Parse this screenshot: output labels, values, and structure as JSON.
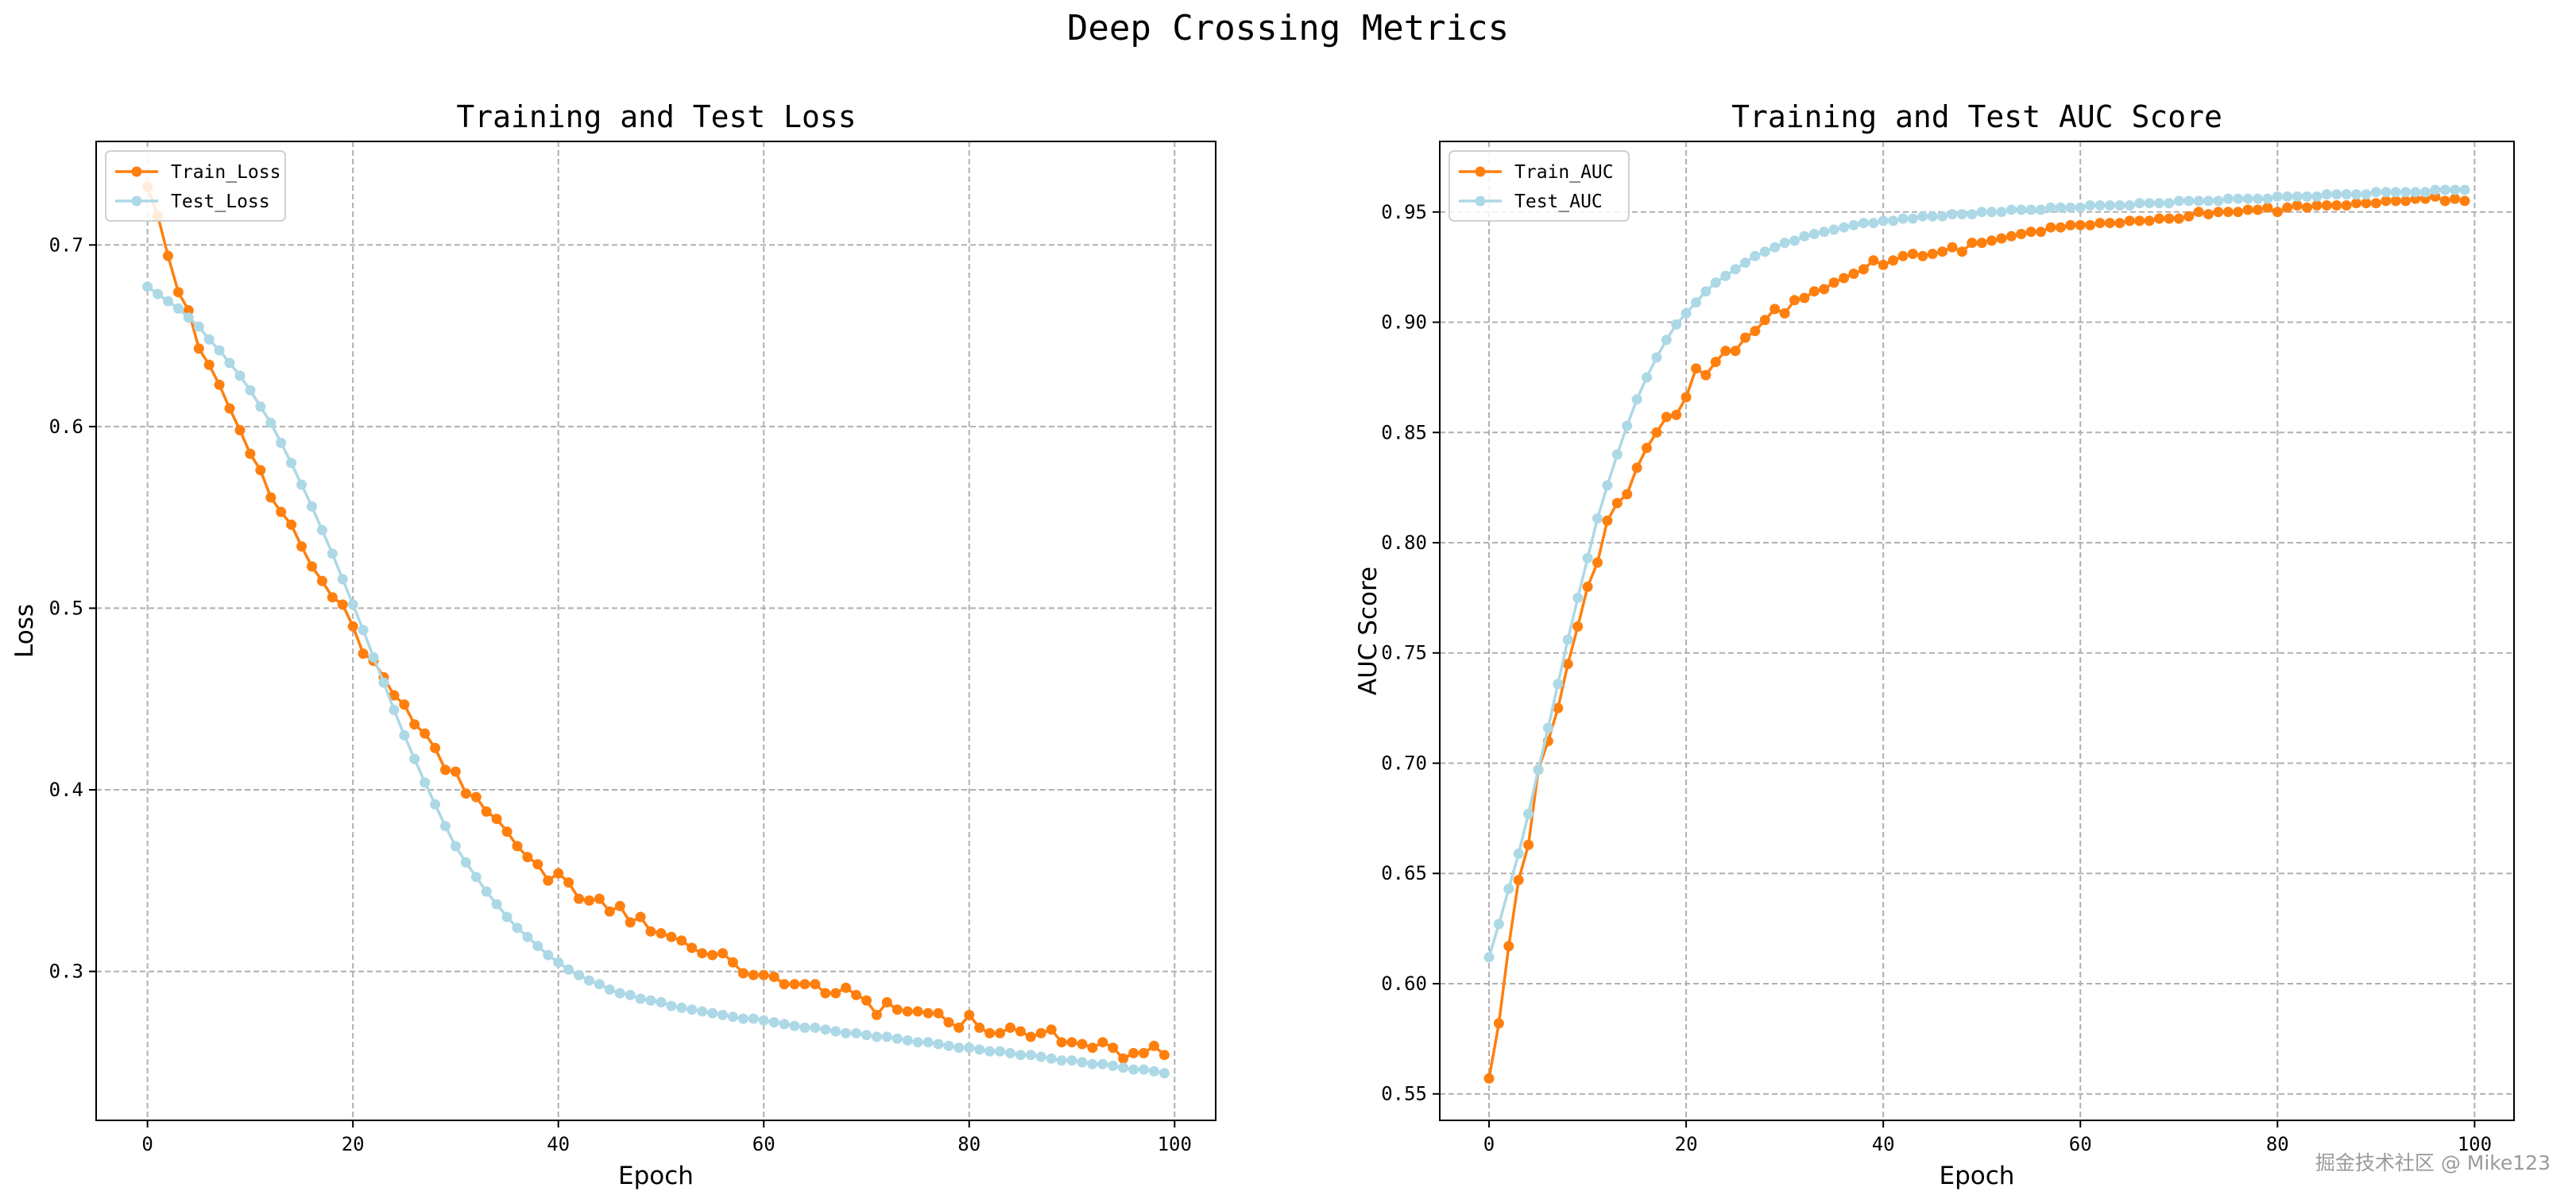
{
  "figure": {
    "title": "Deep Crossing Metrics",
    "watermark": "掘金技术社区 @ Mike123"
  },
  "chart_data": [
    {
      "type": "line",
      "title": "Training and Test Loss",
      "xlabel": "Epoch",
      "ylabel": "Loss",
      "xlim": [
        -5,
        104
      ],
      "ylim": [
        0.218,
        0.757
      ],
      "xticks": [
        0,
        20,
        40,
        60,
        80,
        100
      ],
      "yticks": [
        0.3,
        0.4,
        0.5,
        0.6,
        0.7
      ],
      "grid": true,
      "legend": "top-right",
      "x": [
        0,
        1,
        2,
        3,
        4,
        5,
        6,
        7,
        8,
        9,
        10,
        11,
        12,
        13,
        14,
        15,
        16,
        17,
        18,
        19,
        20,
        21,
        22,
        23,
        24,
        25,
        26,
        27,
        28,
        29,
        30,
        31,
        32,
        33,
        34,
        35,
        36,
        37,
        38,
        39,
        40,
        41,
        42,
        43,
        44,
        45,
        46,
        47,
        48,
        49,
        50,
        51,
        52,
        53,
        54,
        55,
        56,
        57,
        58,
        59,
        60,
        61,
        62,
        63,
        64,
        65,
        66,
        67,
        68,
        69,
        70,
        71,
        72,
        73,
        74,
        75,
        76,
        77,
        78,
        79,
        80,
        81,
        82,
        83,
        84,
        85,
        86,
        87,
        88,
        89,
        90,
        91,
        92,
        93,
        94,
        95,
        96,
        97,
        98,
        99
      ],
      "series": [
        {
          "name": "Train_Loss",
          "color": "#ff7f0e",
          "values": [
            0.732,
            0.716,
            0.694,
            0.674,
            0.664,
            0.643,
            0.634,
            0.623,
            0.61,
            0.598,
            0.585,
            0.576,
            0.561,
            0.553,
            0.546,
            0.534,
            0.523,
            0.515,
            0.506,
            0.502,
            0.49,
            0.475,
            0.471,
            0.462,
            0.452,
            0.447,
            0.436,
            0.431,
            0.423,
            0.411,
            0.41,
            0.398,
            0.396,
            0.388,
            0.384,
            0.377,
            0.369,
            0.363,
            0.359,
            0.35,
            0.354,
            0.349,
            0.34,
            0.339,
            0.34,
            0.333,
            0.336,
            0.327,
            0.33,
            0.322,
            0.321,
            0.319,
            0.317,
            0.313,
            0.31,
            0.309,
            0.31,
            0.305,
            0.299,
            0.298,
            0.298,
            0.297,
            0.293,
            0.293,
            0.293,
            0.293,
            0.288,
            0.288,
            0.291,
            0.287,
            0.284,
            0.276,
            0.283,
            0.279,
            0.278,
            0.278,
            0.277,
            0.277,
            0.272,
            0.269,
            0.276,
            0.269,
            0.266,
            0.266,
            0.269,
            0.267,
            0.264,
            0.266,
            0.268,
            0.261,
            0.261,
            0.26,
            0.258,
            0.261,
            0.258,
            0.252,
            0.255,
            0.255,
            0.259,
            0.254
          ]
        },
        {
          "name": "Test_Loss",
          "color": "#add8e6",
          "values": [
            0.677,
            0.673,
            0.669,
            0.665,
            0.66,
            0.655,
            0.648,
            0.642,
            0.635,
            0.628,
            0.62,
            0.611,
            0.602,
            0.591,
            0.58,
            0.568,
            0.556,
            0.543,
            0.53,
            0.516,
            0.502,
            0.488,
            0.473,
            0.459,
            0.444,
            0.43,
            0.417,
            0.404,
            0.392,
            0.38,
            0.369,
            0.36,
            0.352,
            0.344,
            0.337,
            0.33,
            0.324,
            0.319,
            0.314,
            0.309,
            0.305,
            0.301,
            0.298,
            0.295,
            0.293,
            0.29,
            0.288,
            0.287,
            0.285,
            0.284,
            0.283,
            0.281,
            0.28,
            0.279,
            0.278,
            0.277,
            0.276,
            0.275,
            0.274,
            0.274,
            0.273,
            0.272,
            0.271,
            0.27,
            0.269,
            0.269,
            0.268,
            0.267,
            0.266,
            0.266,
            0.265,
            0.264,
            0.264,
            0.263,
            0.262,
            0.261,
            0.261,
            0.26,
            0.259,
            0.258,
            0.258,
            0.257,
            0.256,
            0.256,
            0.255,
            0.254,
            0.254,
            0.253,
            0.252,
            0.251,
            0.251,
            0.25,
            0.249,
            0.249,
            0.248,
            0.247,
            0.246,
            0.246,
            0.245,
            0.244
          ]
        }
      ]
    },
    {
      "type": "line",
      "title": "Training and Test AUC Score",
      "xlabel": "Epoch",
      "ylabel": "AUC Score",
      "xlim": [
        -5,
        104
      ],
      "ylim": [
        0.538,
        0.982
      ],
      "xticks": [
        0,
        20,
        40,
        60,
        80,
        100
      ],
      "yticks": [
        0.55,
        0.6,
        0.65,
        0.7,
        0.75,
        0.8,
        0.85,
        0.9,
        0.95
      ],
      "grid": true,
      "legend": "top-left",
      "x": [
        0,
        1,
        2,
        3,
        4,
        5,
        6,
        7,
        8,
        9,
        10,
        11,
        12,
        13,
        14,
        15,
        16,
        17,
        18,
        19,
        20,
        21,
        22,
        23,
        24,
        25,
        26,
        27,
        28,
        29,
        30,
        31,
        32,
        33,
        34,
        35,
        36,
        37,
        38,
        39,
        40,
        41,
        42,
        43,
        44,
        45,
        46,
        47,
        48,
        49,
        50,
        51,
        52,
        53,
        54,
        55,
        56,
        57,
        58,
        59,
        60,
        61,
        62,
        63,
        64,
        65,
        66,
        67,
        68,
        69,
        70,
        71,
        72,
        73,
        74,
        75,
        76,
        77,
        78,
        79,
        80,
        81,
        82,
        83,
        84,
        85,
        86,
        87,
        88,
        89,
        90,
        91,
        92,
        93,
        94,
        95,
        96,
        97,
        98,
        99
      ],
      "series": [
        {
          "name": "Train_AUC",
          "color": "#ff7f0e",
          "values": [
            0.557,
            0.582,
            0.617,
            0.647,
            0.663,
            0.697,
            0.71,
            0.725,
            0.745,
            0.762,
            0.78,
            0.791,
            0.81,
            0.818,
            0.822,
            0.834,
            0.843,
            0.85,
            0.857,
            0.858,
            0.866,
            0.879,
            0.876,
            0.882,
            0.887,
            0.887,
            0.893,
            0.896,
            0.901,
            0.906,
            0.904,
            0.91,
            0.911,
            0.914,
            0.915,
            0.918,
            0.92,
            0.922,
            0.924,
            0.928,
            0.926,
            0.928,
            0.93,
            0.931,
            0.93,
            0.931,
            0.932,
            0.934,
            0.932,
            0.936,
            0.936,
            0.937,
            0.938,
            0.939,
            0.94,
            0.941,
            0.941,
            0.943,
            0.943,
            0.944,
            0.944,
            0.944,
            0.945,
            0.945,
            0.945,
            0.946,
            0.946,
            0.946,
            0.947,
            0.947,
            0.947,
            0.948,
            0.95,
            0.949,
            0.95,
            0.95,
            0.95,
            0.951,
            0.951,
            0.952,
            0.95,
            0.952,
            0.953,
            0.952,
            0.953,
            0.953,
            0.953,
            0.953,
            0.954,
            0.954,
            0.954,
            0.955,
            0.955,
            0.955,
            0.956,
            0.956,
            0.957,
            0.955,
            0.956,
            0.955
          ]
        },
        {
          "name": "Test_AUC",
          "color": "#add8e6",
          "values": [
            0.612,
            0.627,
            0.643,
            0.659,
            0.677,
            0.697,
            0.716,
            0.736,
            0.756,
            0.775,
            0.793,
            0.811,
            0.826,
            0.84,
            0.853,
            0.865,
            0.875,
            0.884,
            0.892,
            0.899,
            0.904,
            0.909,
            0.914,
            0.918,
            0.921,
            0.924,
            0.927,
            0.93,
            0.932,
            0.934,
            0.936,
            0.937,
            0.939,
            0.94,
            0.941,
            0.942,
            0.943,
            0.944,
            0.945,
            0.945,
            0.946,
            0.946,
            0.947,
            0.947,
            0.948,
            0.948,
            0.948,
            0.949,
            0.949,
            0.949,
            0.95,
            0.95,
            0.95,
            0.951,
            0.951,
            0.951,
            0.951,
            0.952,
            0.952,
            0.952,
            0.952,
            0.953,
            0.953,
            0.953,
            0.953,
            0.953,
            0.954,
            0.954,
            0.954,
            0.954,
            0.955,
            0.955,
            0.955,
            0.955,
            0.955,
            0.956,
            0.956,
            0.956,
            0.956,
            0.956,
            0.957,
            0.957,
            0.957,
            0.957,
            0.957,
            0.958,
            0.958,
            0.958,
            0.958,
            0.958,
            0.959,
            0.959,
            0.959,
            0.959,
            0.959,
            0.959,
            0.96,
            0.96,
            0.96,
            0.96
          ]
        }
      ]
    }
  ]
}
